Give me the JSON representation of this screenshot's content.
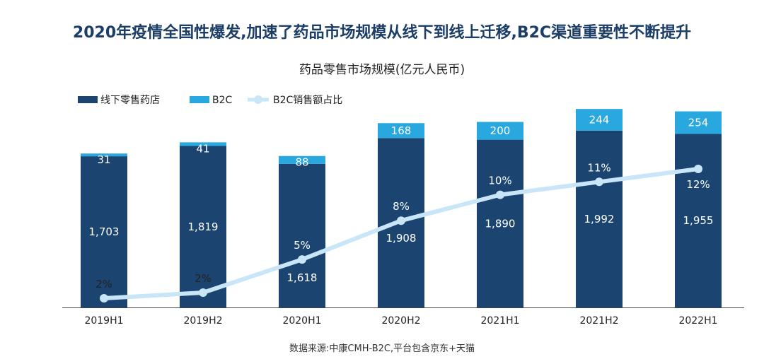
{
  "headline": "2020年疫情全国性爆发,加速了药品市场规模从线下到线上迁移,B2C渠道重要性不断提升",
  "source": "数据来源:中康CMH-B2C,平台包含京东+天猫",
  "colors": {
    "offline": "#1b4470",
    "b2c": "#29a8e0",
    "share_line": "#c8e6f7",
    "share_marker": "#c8e6f7"
  },
  "chart_data": {
    "type": "bar",
    "stacked": true,
    "title": "药品零售市场规模(亿元人民币)",
    "categories": [
      "2019H1",
      "2019H2",
      "2020H1",
      "2020H2",
      "2021H1",
      "2021H2",
      "2022H1"
    ],
    "series": [
      {
        "name": "线下零售药店",
        "values": [
          1703,
          1819,
          1618,
          1908,
          1890,
          1992,
          1955
        ],
        "labels": [
          "1,703",
          "1,819",
          "1,618",
          "1,908",
          "1,890",
          "1,992",
          "1,955"
        ]
      },
      {
        "name": "B2C",
        "values": [
          31,
          41,
          88,
          168,
          200,
          244,
          254
        ],
        "labels": [
          "31",
          "41",
          "88",
          "168",
          "200",
          "244",
          "254"
        ]
      }
    ],
    "line_series": {
      "name": "B2C销售额占比",
      "values": [
        2,
        2,
        5,
        8,
        10,
        11,
        12
      ],
      "labels": [
        "2%",
        "2%",
        "5%",
        "8%",
        "10%",
        "11%",
        "12%"
      ]
    },
    "legend": {
      "position": "top-left"
    }
  }
}
